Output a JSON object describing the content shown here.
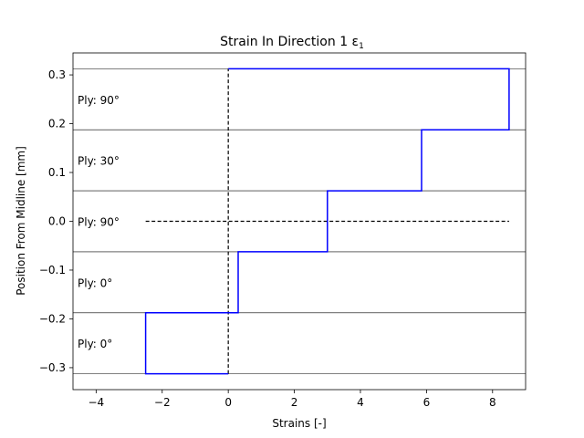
{
  "chart_data": {
    "type": "line",
    "title": "Strain In Direction 1 ε",
    "title_subscript": "1",
    "xlabel": "Strains [-]",
    "ylabel": "Position From Midline [mm]",
    "xlim": [
      -4.7,
      9.0
    ],
    "ylim": [
      -0.345,
      0.345
    ],
    "xticks": [
      -4,
      -2,
      0,
      2,
      4,
      6,
      8
    ],
    "yticks": [
      -0.3,
      -0.2,
      -0.1,
      0.0,
      0.1,
      0.2,
      0.3
    ],
    "xtick_labels": [
      "−4",
      "−2",
      "0",
      "2",
      "4",
      "6",
      "8"
    ],
    "ytick_labels": [
      "−0.3",
      "−0.2",
      "−0.1",
      "0.0",
      "0.1",
      "0.2",
      "0.3"
    ],
    "grid": false,
    "colors": {
      "strain": "#0000ff",
      "boundary": "#000000",
      "reference": "#000000"
    },
    "ply_boundaries": [
      -0.3125,
      -0.1875,
      -0.0625,
      0.0625,
      0.1875,
      0.3125
    ],
    "plies": [
      {
        "label": "Ply: 0°",
        "y_range": [
          -0.3125,
          -0.1875
        ],
        "strain": [
          0.0,
          -2.5
        ]
      },
      {
        "label": "Ply: 0°",
        "y_range": [
          -0.1875,
          -0.0625
        ],
        "strain": [
          0.3,
          0.3
        ]
      },
      {
        "label": "Ply: 90°",
        "y_range": [
          -0.0625,
          0.0625
        ],
        "strain": [
          3.0,
          3.0
        ]
      },
      {
        "label": "Ply: 30°",
        "y_range": [
          0.0625,
          0.1875
        ],
        "strain": [
          5.85,
          5.85
        ]
      },
      {
        "label": "Ply: 90°",
        "y_range": [
          0.1875,
          0.3125
        ],
        "strain": [
          8.5,
          8.5
        ]
      }
    ],
    "series": [
      {
        "style": "solid",
        "color": "#0000ff",
        "x": [
          0.0,
          -2.5,
          -2.5,
          0.3,
          0.3,
          3.0,
          3.0,
          5.85,
          5.85,
          8.5,
          8.5,
          0.0
        ],
        "y": [
          -0.3125,
          -0.3125,
          -0.1875,
          -0.1875,
          -0.0625,
          -0.0625,
          0.0625,
          0.0625,
          0.1875,
          0.1875,
          0.3125,
          0.3125
        ]
      }
    ],
    "reference_lines": [
      {
        "style": "dashed",
        "x": [
          0.0,
          0.0
        ],
        "y": [
          -0.3125,
          0.3125
        ]
      },
      {
        "style": "dashed",
        "x": [
          -2.5,
          8.5
        ],
        "y": [
          0.0,
          0.0
        ]
      }
    ]
  }
}
